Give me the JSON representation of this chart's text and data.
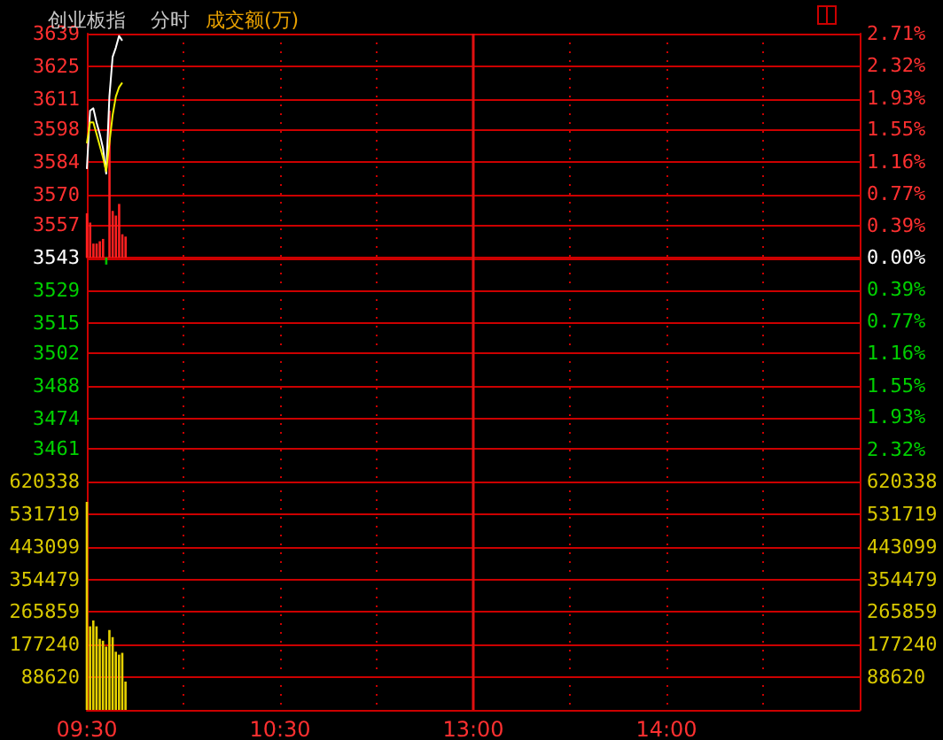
{
  "chart_data": [
    {
      "type": "line",
      "title": "创业板指",
      "subtitle": "分时",
      "annotations": [
        "成交额(万)"
      ],
      "categories": [
        "09:30",
        null,
        null,
        null,
        null,
        null,
        null,
        null,
        null,
        null,
        null,
        null,
        null,
        null,
        null,
        null,
        null,
        null,
        null,
        null,
        null,
        null,
        null,
        null,
        null,
        null,
        null,
        null,
        null,
        null,
        null,
        null,
        null,
        null,
        null,
        null,
        null,
        null,
        null,
        null,
        null,
        null,
        null,
        null,
        null,
        null,
        null,
        null,
        null,
        null,
        null,
        null,
        null,
        null,
        null,
        null,
        null,
        null,
        null,
        null,
        "10:30",
        null,
        null,
        null,
        null,
        null,
        null,
        null,
        null,
        null,
        null,
        null,
        null,
        null,
        null,
        null,
        null,
        null,
        null,
        null,
        null,
        null,
        null,
        null,
        null,
        null,
        null,
        null,
        null,
        null,
        null,
        null,
        null,
        null,
        null,
        null,
        null,
        null,
        null,
        null,
        null,
        null,
        null,
        null,
        null,
        null,
        null,
        null,
        null,
        null,
        null,
        null,
        null,
        null,
        null,
        null,
        null,
        null,
        null,
        null,
        "13:00",
        null,
        null,
        null,
        null,
        null,
        null,
        null,
        null,
        null,
        null,
        null,
        null,
        null,
        null,
        null,
        null,
        null,
        null,
        null,
        null,
        null,
        null,
        null,
        null,
        null,
        null,
        null,
        null,
        null,
        null,
        null,
        null,
        null,
        null,
        null,
        null,
        null,
        null,
        null,
        null,
        null,
        null,
        null,
        null,
        null,
        null,
        null,
        null,
        null,
        null,
        null,
        null,
        null,
        null,
        null,
        null,
        null,
        null,
        null,
        "14:00",
        null,
        null,
        null,
        null,
        null,
        null,
        null,
        null,
        null,
        null,
        null,
        null,
        null,
        null,
        null,
        null,
        null,
        null,
        null,
        null,
        null,
        null,
        null,
        null,
        null,
        null,
        null,
        null,
        null,
        null,
        null,
        null,
        null,
        null,
        null,
        null,
        null,
        null,
        null,
        null,
        null,
        null,
        null,
        null,
        null,
        null,
        null,
        null,
        null,
        null,
        null,
        null,
        null,
        null,
        null,
        null,
        null,
        null,
        null,
        null
      ],
      "ylim": [
        3447,
        3639
      ],
      "yticks": [
        3639,
        3625,
        3611,
        3598,
        3584,
        3570,
        3557,
        3543,
        3529,
        3515,
        3502,
        3488,
        3474,
        3461
      ],
      "y2lim": [
        -2.71,
        2.71
      ],
      "y2ticks": [
        {
          "value": 2.71,
          "label": "2.71%"
        },
        {
          "value": 2.32,
          "label": "2.32%"
        },
        {
          "value": 1.93,
          "label": "1.93%"
        },
        {
          "value": 1.55,
          "label": "1.55%"
        },
        {
          "value": 1.16,
          "label": "1.16%"
        },
        {
          "value": 0.77,
          "label": "0.77%"
        },
        {
          "value": 0.39,
          "label": "0.39%"
        },
        {
          "value": 0,
          "label": "0.00%"
        },
        {
          "value": -0.39,
          "label": "0.39%"
        },
        {
          "value": -0.77,
          "label": "0.77%"
        },
        {
          "value": -1.16,
          "label": "1.16%"
        },
        {
          "value": -1.55,
          "label": "1.55%"
        },
        {
          "value": -1.93,
          "label": "1.93%"
        },
        {
          "value": -2.32,
          "label": "2.32%"
        }
      ],
      "tick_labels": "y",
      "grid": true,
      "ref_lines": [
        {
          "axis": "y",
          "value": 3543,
          "color": "#cc0000"
        },
        {
          "axis": "x",
          "value": "13:00",
          "color": "#e01010"
        }
      ],
      "series": [
        {
          "type": "bar",
          "base": [
            3543,
            3543,
            3543,
            3543,
            3543,
            3543,
            3543,
            3543,
            3543,
            3543,
            3543,
            3543,
            3543,
            null,
            null,
            null,
            null,
            null,
            null,
            null,
            null,
            null,
            null,
            null,
            null,
            null,
            null,
            null,
            null,
            null,
            null,
            null,
            null,
            null,
            null,
            null,
            null,
            null,
            null,
            null,
            null,
            null,
            null,
            null,
            null,
            null,
            null,
            null,
            null,
            null,
            null,
            null,
            null,
            null,
            null,
            null,
            null,
            null,
            null,
            null,
            null,
            null,
            null,
            null,
            null,
            null,
            null,
            null,
            null,
            null,
            null,
            null,
            null,
            null,
            null,
            null,
            null,
            null,
            null,
            null,
            null,
            null,
            null,
            null,
            null,
            null,
            null,
            null,
            null,
            null,
            null,
            null,
            null,
            null,
            null,
            null,
            null,
            null,
            null,
            null,
            null,
            null,
            null,
            null,
            null,
            null,
            null,
            null,
            null,
            null,
            null,
            null,
            null,
            null,
            null,
            null,
            null,
            null,
            null,
            null,
            null,
            null,
            null,
            null,
            null,
            null,
            null,
            null,
            null,
            null,
            null,
            null,
            null,
            null,
            null,
            null,
            null,
            null,
            null,
            null,
            null,
            null,
            null,
            null,
            null,
            null,
            null,
            null,
            null,
            null,
            null,
            null,
            null,
            null,
            null,
            null,
            null,
            null,
            null,
            null,
            null,
            null,
            null,
            null,
            null,
            null,
            null,
            null,
            null,
            null,
            null,
            null,
            null,
            null,
            null,
            null,
            null,
            null,
            null,
            null,
            null,
            null,
            null,
            null,
            null,
            null,
            null,
            null,
            null,
            null,
            null,
            null,
            null,
            null,
            null,
            null,
            null,
            null,
            null,
            null,
            null,
            null,
            null,
            null,
            null,
            null,
            null,
            null,
            null,
            null,
            null,
            null,
            null,
            null,
            null,
            null,
            null,
            null,
            null,
            null,
            null,
            null,
            null,
            null,
            null,
            null,
            null,
            null,
            null,
            null,
            null,
            null,
            null,
            null,
            null,
            null,
            null,
            null,
            null,
            null,
            null
          ],
          "values": [
            19,
            15,
            6,
            6,
            7,
            8,
            -3,
            63,
            20,
            18,
            23,
            10,
            9,
            null,
            null,
            null,
            null,
            null,
            null,
            null,
            null,
            null,
            null,
            null,
            null,
            null,
            null,
            null,
            null,
            null,
            null,
            null,
            null,
            null,
            null,
            null,
            null,
            null,
            null,
            null,
            null,
            null,
            null,
            null,
            null,
            null,
            null,
            null,
            null,
            null,
            null,
            null,
            null,
            null,
            null,
            null,
            null,
            null,
            null,
            null,
            null,
            null,
            null,
            null,
            null,
            null,
            null,
            null,
            null,
            null,
            null,
            null,
            null,
            null,
            null,
            null,
            null,
            null,
            null,
            null,
            null,
            null,
            null,
            null,
            null,
            null,
            null,
            null,
            null,
            null,
            null,
            null,
            null,
            null,
            null,
            null,
            null,
            null,
            null,
            null,
            null,
            null,
            null,
            null,
            null,
            null,
            null,
            null,
            null,
            null,
            null,
            null,
            null,
            null,
            null,
            null,
            null,
            null,
            null,
            null,
            null,
            null,
            null,
            null,
            null,
            null,
            null,
            null,
            null,
            null,
            null,
            null,
            null,
            null,
            null,
            null,
            null,
            null,
            null,
            null,
            null,
            null,
            null,
            null,
            null,
            null,
            null,
            null,
            null,
            null,
            null,
            null,
            null,
            null,
            null,
            null,
            null,
            null,
            null,
            null,
            null,
            null,
            null,
            null,
            null,
            null,
            null,
            null,
            null,
            null,
            null,
            null,
            null,
            null,
            null,
            null,
            null,
            null,
            null,
            null,
            null,
            null,
            null,
            null,
            null,
            null,
            null,
            null,
            null,
            null,
            null,
            null,
            null,
            null,
            null,
            null,
            null,
            null,
            null,
            null,
            null,
            null,
            null,
            null,
            null,
            null,
            null,
            null,
            null,
            null,
            null,
            null,
            null,
            null,
            null,
            null,
            null,
            null,
            null,
            null,
            null,
            null,
            null,
            null,
            null,
            null,
            null,
            null,
            null,
            null,
            null,
            null,
            null,
            null,
            null,
            null,
            null,
            null,
            null,
            null,
            null
          ],
          "colors": [
            "#ff2020",
            "#ff2020",
            "#ff2020",
            "#ff2020",
            "#ff2020",
            "#ff2020",
            "#00c000",
            "#ff2020",
            "#ff2020",
            "#ff2020",
            "#ff2020",
            "#ff2020",
            "#ff2020",
            null,
            null,
            null,
            null,
            null,
            null,
            null,
            null,
            null,
            null,
            null,
            null,
            null,
            null,
            null,
            null,
            null,
            null,
            null,
            null,
            null,
            null,
            null,
            null,
            null,
            null,
            null,
            null,
            null,
            null,
            null,
            null,
            null,
            null,
            null,
            null,
            null,
            null,
            null,
            null,
            null,
            null,
            null,
            null,
            null,
            null,
            null,
            null,
            null,
            null,
            null,
            null,
            null,
            null,
            null,
            null,
            null,
            null,
            null,
            null,
            null,
            null,
            null,
            null,
            null,
            null,
            null,
            null,
            null,
            null,
            null,
            null,
            null,
            null,
            null,
            null,
            null,
            null,
            null,
            null,
            null,
            null,
            null,
            null,
            null,
            null,
            null,
            null,
            null,
            null,
            null,
            null,
            null,
            null,
            null,
            null,
            null,
            null,
            null,
            null,
            null,
            null,
            null,
            null,
            null,
            null,
            null,
            null,
            null,
            null,
            null,
            null,
            null,
            null,
            null,
            null,
            null,
            null,
            null,
            null,
            null,
            null,
            null,
            null,
            null,
            null,
            null,
            null,
            null,
            null,
            null,
            null,
            null,
            null,
            null,
            null,
            null,
            null,
            null,
            null,
            null,
            null,
            null,
            null,
            null,
            null,
            null,
            null,
            null,
            null,
            null,
            null,
            null,
            null,
            null,
            null,
            null,
            null,
            null,
            null,
            null,
            null,
            null,
            null,
            null,
            null,
            null,
            null,
            null,
            null,
            null,
            null,
            null,
            null,
            null,
            null,
            null,
            null,
            null,
            null,
            null,
            null,
            null,
            null,
            null,
            null,
            null,
            null,
            null,
            null,
            null,
            null,
            null,
            null,
            null,
            null,
            null,
            null,
            null,
            null,
            null,
            null,
            null,
            null,
            null,
            null,
            null,
            null,
            null,
            null,
            null,
            null,
            null,
            null,
            null,
            null,
            null,
            null,
            null,
            null,
            null,
            null,
            null,
            null,
            null,
            null,
            null,
            null
          ]
        },
        {
          "color": "#ffffff",
          "values": [
            3581,
            3606,
            3607,
            3601,
            3596,
            3590,
            3579,
            3612,
            3629,
            3633,
            3638,
            3636,
            null,
            null,
            null,
            null,
            null,
            null,
            null,
            null,
            null,
            null,
            null,
            null,
            null,
            null,
            null,
            null,
            null,
            null,
            null,
            null,
            null,
            null,
            null,
            null,
            null,
            null,
            null,
            null,
            null,
            null,
            null,
            null,
            null,
            null,
            null,
            null,
            null,
            null,
            null,
            null,
            null,
            null,
            null,
            null,
            null,
            null,
            null,
            null,
            null,
            null,
            null,
            null,
            null,
            null,
            null,
            null,
            null,
            null,
            null,
            null,
            null,
            null,
            null,
            null,
            null,
            null,
            null,
            null,
            null,
            null,
            null,
            null,
            null,
            null,
            null,
            null,
            null,
            null,
            null,
            null,
            null,
            null,
            null,
            null,
            null,
            null,
            null,
            null,
            null,
            null,
            null,
            null,
            null,
            null,
            null,
            null,
            null,
            null,
            null,
            null,
            null,
            null,
            null,
            null,
            null,
            null,
            null,
            null,
            null,
            null,
            null,
            null,
            null,
            null,
            null,
            null,
            null,
            null,
            null,
            null,
            null,
            null,
            null,
            null,
            null,
            null,
            null,
            null,
            null,
            null,
            null,
            null,
            null,
            null,
            null,
            null,
            null,
            null,
            null,
            null,
            null,
            null,
            null,
            null,
            null,
            null,
            null,
            null,
            null,
            null,
            null,
            null,
            null,
            null,
            null,
            null,
            null,
            null,
            null,
            null,
            null,
            null,
            null,
            null,
            null,
            null,
            null,
            null,
            null,
            null,
            null,
            null,
            null,
            null,
            null,
            null,
            null,
            null,
            null,
            null,
            null,
            null,
            null,
            null,
            null,
            null,
            null,
            null,
            null,
            null,
            null,
            null,
            null,
            null,
            null,
            null,
            null,
            null,
            null,
            null,
            null,
            null,
            null,
            null,
            null,
            null,
            null,
            null,
            null,
            null,
            null,
            null,
            null,
            null,
            null,
            null,
            null,
            null,
            null,
            null,
            null,
            null,
            null,
            null,
            null,
            null,
            null,
            null,
            null
          ]
        },
        {
          "color": "#f0f000",
          "values": [
            3592,
            3601,
            3601,
            3596,
            3591,
            3586,
            3580,
            3592,
            3604,
            3612,
            3616,
            3618,
            null,
            null,
            null,
            null,
            null,
            null,
            null,
            null,
            null,
            null,
            null,
            null,
            null,
            null,
            null,
            null,
            null,
            null,
            null,
            null,
            null,
            null,
            null,
            null,
            null,
            null,
            null,
            null,
            null,
            null,
            null,
            null,
            null,
            null,
            null,
            null,
            null,
            null,
            null,
            null,
            null,
            null,
            null,
            null,
            null,
            null,
            null,
            null,
            null,
            null,
            null,
            null,
            null,
            null,
            null,
            null,
            null,
            null,
            null,
            null,
            null,
            null,
            null,
            null,
            null,
            null,
            null,
            null,
            null,
            null,
            null,
            null,
            null,
            null,
            null,
            null,
            null,
            null,
            null,
            null,
            null,
            null,
            null,
            null,
            null,
            null,
            null,
            null,
            null,
            null,
            null,
            null,
            null,
            null,
            null,
            null,
            null,
            null,
            null,
            null,
            null,
            null,
            null,
            null,
            null,
            null,
            null,
            null,
            null,
            null,
            null,
            null,
            null,
            null,
            null,
            null,
            null,
            null,
            null,
            null,
            null,
            null,
            null,
            null,
            null,
            null,
            null,
            null,
            null,
            null,
            null,
            null,
            null,
            null,
            null,
            null,
            null,
            null,
            null,
            null,
            null,
            null,
            null,
            null,
            null,
            null,
            null,
            null,
            null,
            null,
            null,
            null,
            null,
            null,
            null,
            null,
            null,
            null,
            null,
            null,
            null,
            null,
            null,
            null,
            null,
            null,
            null,
            null,
            null,
            null,
            null,
            null,
            null,
            null,
            null,
            null,
            null,
            null,
            null,
            null,
            null,
            null,
            null,
            null,
            null,
            null,
            null,
            null,
            null,
            null,
            null,
            null,
            null,
            null,
            null,
            null,
            null,
            null,
            null,
            null,
            null,
            null,
            null,
            null,
            null,
            null,
            null,
            null,
            null,
            null,
            null,
            null,
            null,
            null,
            null,
            null,
            null,
            null,
            null,
            null,
            null,
            null,
            null,
            null,
            null,
            null,
            null,
            null,
            null
          ]
        }
      ]
    },
    {
      "type": "bar",
      "categories": [
        "09:30",
        null,
        null,
        null,
        null,
        null,
        null,
        null,
        null,
        null,
        null,
        null,
        null,
        null,
        null,
        null,
        null,
        null,
        null,
        null,
        null,
        null,
        null,
        null,
        null,
        null,
        null,
        null,
        null,
        null,
        null,
        null,
        null,
        null,
        null,
        null,
        null,
        null,
        null,
        null,
        null,
        null,
        null,
        null,
        null,
        null,
        null,
        null,
        null,
        null,
        null,
        null,
        null,
        null,
        null,
        null,
        null,
        null,
        null,
        null,
        "10:30",
        null,
        null,
        null,
        null,
        null,
        null,
        null,
        null,
        null,
        null,
        null,
        null,
        null,
        null,
        null,
        null,
        null,
        null,
        null,
        null,
        null,
        null,
        null,
        null,
        null,
        null,
        null,
        null,
        null,
        null,
        null,
        null,
        null,
        null,
        null,
        null,
        null,
        null,
        null,
        null,
        null,
        null,
        null,
        null,
        null,
        null,
        null,
        null,
        null,
        null,
        null,
        null,
        null,
        null,
        null,
        null,
        null,
        null,
        null,
        "13:00",
        null,
        null,
        null,
        null,
        null,
        null,
        null,
        null,
        null,
        null,
        null,
        null,
        null,
        null,
        null,
        null,
        null,
        null,
        null,
        null,
        null,
        null,
        null,
        null,
        null,
        null,
        null,
        null,
        null,
        null,
        null,
        null,
        null,
        null,
        null,
        null,
        null,
        null,
        null,
        null,
        null,
        null,
        null,
        null,
        null,
        null,
        null,
        null,
        null,
        null,
        null,
        null,
        null,
        null,
        null,
        null,
        null,
        null,
        null,
        "14:00",
        null,
        null,
        null,
        null,
        null,
        null,
        null,
        null,
        null,
        null,
        null,
        null,
        null,
        null,
        null,
        null,
        null,
        null,
        null,
        null,
        null,
        null,
        null,
        null,
        null,
        null,
        null,
        null,
        null,
        null,
        null,
        null,
        null,
        null,
        null,
        null,
        null,
        null,
        null,
        null,
        null,
        null,
        null,
        null,
        null,
        null,
        null,
        null,
        null,
        null,
        null,
        null,
        null,
        null,
        null,
        null,
        null,
        null,
        null,
        null
      ],
      "ylim": [
        0,
        620338
      ],
      "yticks": [
        88620,
        177240,
        265859,
        354479,
        443099,
        531719,
        620338
      ],
      "y2lim": [
        0,
        620338
      ],
      "y2ticks": [
        88620,
        177240,
        265859,
        354479,
        443099,
        531719,
        620338
      ],
      "grid": true,
      "ref_lines": [
        {
          "axis": "x",
          "value": "13:00",
          "color": "#e01010"
        }
      ],
      "series": [
        {
          "color": "#e6d200",
          "values": [
            565000,
            227000,
            243000,
            227000,
            193000,
            188000,
            172000,
            217000,
            198000,
            158000,
            150000,
            155000,
            77000,
            null,
            null,
            null,
            null,
            null,
            null,
            null,
            null,
            null,
            null,
            null,
            null,
            null,
            null,
            null,
            null,
            null,
            null,
            null,
            null,
            null,
            null,
            null,
            null,
            null,
            null,
            null,
            null,
            null,
            null,
            null,
            null,
            null,
            null,
            null,
            null,
            null,
            null,
            null,
            null,
            null,
            null,
            null,
            null,
            null,
            null,
            null,
            null,
            null,
            null,
            null,
            null,
            null,
            null,
            null,
            null,
            null,
            null,
            null,
            null,
            null,
            null,
            null,
            null,
            null,
            null,
            null,
            null,
            null,
            null,
            null,
            null,
            null,
            null,
            null,
            null,
            null,
            null,
            null,
            null,
            null,
            null,
            null,
            null,
            null,
            null,
            null,
            null,
            null,
            null,
            null,
            null,
            null,
            null,
            null,
            null,
            null,
            null,
            null,
            null,
            null,
            null,
            null,
            null,
            null,
            null,
            null,
            null,
            null,
            null,
            null,
            null,
            null,
            null,
            null,
            null,
            null,
            null,
            null,
            null,
            null,
            null,
            null,
            null,
            null,
            null,
            null,
            null,
            null,
            null,
            null,
            null,
            null,
            null,
            null,
            null,
            null,
            null,
            null,
            null,
            null,
            null,
            null,
            null,
            null,
            null,
            null,
            null,
            null,
            null,
            null,
            null,
            null,
            null,
            null,
            null,
            null,
            null,
            null,
            null,
            null,
            null,
            null,
            null,
            null,
            null,
            null,
            null,
            null,
            null,
            null,
            null,
            null,
            null,
            null,
            null,
            null,
            null,
            null,
            null,
            null,
            null,
            null,
            null,
            null,
            null,
            null,
            null,
            null,
            null,
            null,
            null,
            null,
            null,
            null,
            null,
            null,
            null,
            null,
            null,
            null,
            null,
            null,
            null,
            null,
            null,
            null,
            null,
            null,
            null,
            null,
            null,
            null,
            null,
            null,
            null,
            null,
            null,
            null,
            null,
            null,
            null,
            null,
            null,
            null,
            null,
            null,
            null
          ]
        }
      ]
    }
  ]
}
